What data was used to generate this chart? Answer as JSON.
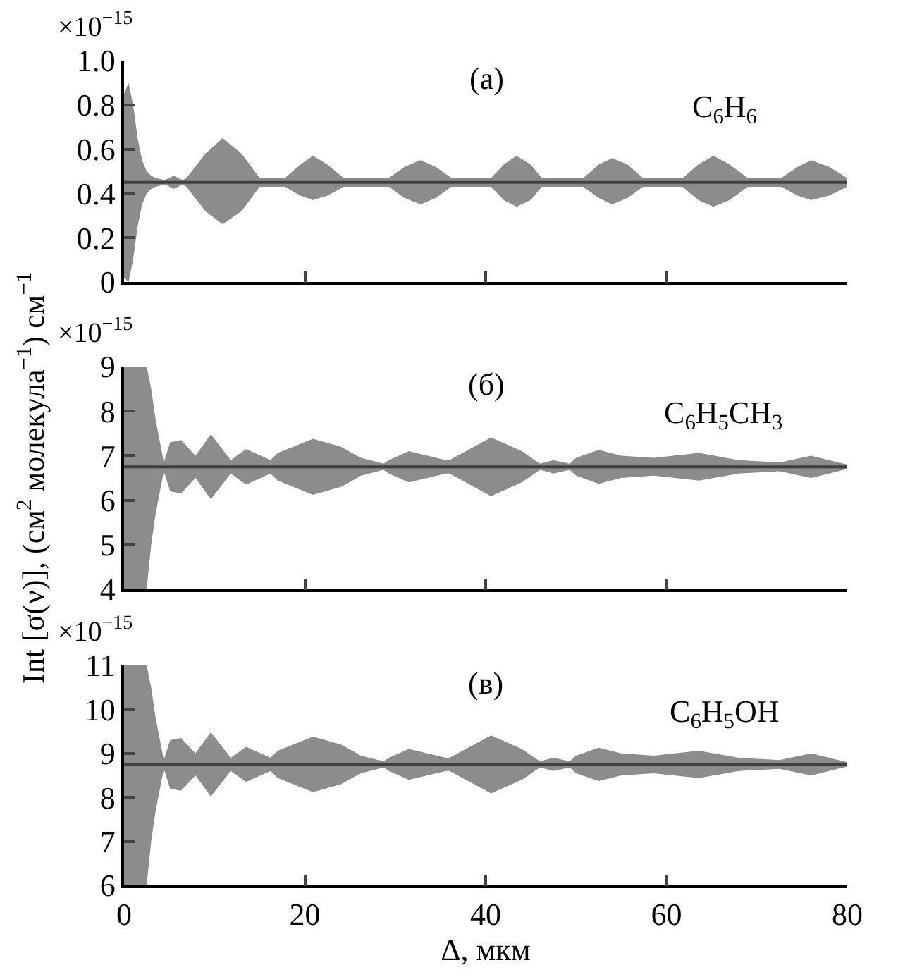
{
  "chart_data": [
    {
      "type": "line",
      "x": [
        0,
        0.5,
        1,
        1.5,
        2,
        2.5,
        3,
        3.5,
        4.5,
        5.5,
        6.5,
        6.9,
        9,
        10.9,
        13,
        15,
        17.8,
        19.5,
        20.9,
        22.5,
        24.3,
        29.3,
        31,
        32.8,
        34.5,
        36.2,
        40.6,
        42,
        43.4,
        45,
        46.2,
        50.8,
        52.5,
        54,
        55.7,
        57.4,
        61.8,
        63.5,
        65.2,
        67,
        69,
        72.7,
        74.5,
        76,
        78,
        80
      ],
      "series": [
        {
          "color": "#404040",
          "values": [
            0.45,
            0.45,
            0.45,
            0.45,
            0.45,
            0.45,
            0.45,
            0.45,
            0.45,
            0.45,
            0.45,
            0.45,
            0.45,
            0.45,
            0.45,
            0.45,
            0.45,
            0.45,
            0.45,
            0.45,
            0.45,
            0.45,
            0.45,
            0.45,
            0.45,
            0.45,
            0.45,
            0.45,
            0.45,
            0.45,
            0.45,
            0.45,
            0.45,
            0.45,
            0.45,
            0.45,
            0.45,
            0.45,
            0.45,
            0.45,
            0.45,
            0.45,
            0.45,
            0.45,
            0.45,
            0.45
          ],
          "upper": [
            0.85,
            0.9,
            0.8,
            0.65,
            0.55,
            0.5,
            0.48,
            0.47,
            0.46,
            0.48,
            0.46,
            0.47,
            0.58,
            0.65,
            0.58,
            0.47,
            0.47,
            0.53,
            0.57,
            0.53,
            0.47,
            0.47,
            0.52,
            0.55,
            0.52,
            0.47,
            0.47,
            0.53,
            0.57,
            0.53,
            0.47,
            0.47,
            0.53,
            0.56,
            0.53,
            0.47,
            0.47,
            0.53,
            0.57,
            0.53,
            0.47,
            0.47,
            0.52,
            0.55,
            0.52,
            0.47
          ],
          "lower": [
            0.02,
            0,
            0.1,
            0.25,
            0.35,
            0.4,
            0.42,
            0.43,
            0.44,
            0.42,
            0.44,
            0.43,
            0.32,
            0.26,
            0.32,
            0.43,
            0.43,
            0.39,
            0.37,
            0.39,
            0.43,
            0.43,
            0.38,
            0.35,
            0.38,
            0.43,
            0.43,
            0.37,
            0.34,
            0.37,
            0.43,
            0.43,
            0.38,
            0.35,
            0.38,
            0.43,
            0.43,
            0.37,
            0.34,
            0.37,
            0.43,
            0.43,
            0.39,
            0.37,
            0.39,
            0.43
          ]
        }
      ],
      "xlim": [
        0,
        80
      ],
      "xticks": [
        0,
        20,
        40,
        60,
        80
      ],
      "ylim": [
        0,
        1.0
      ],
      "yticks": [
        0,
        0.2,
        0.4,
        0.6,
        0.8,
        {
          "value": 1.0,
          "label": "1.0"
        }
      ],
      "tick_labels": "y",
      "annotations": [
        "×10$^{−15}$",
        "(а)",
        "C$_{6}$H$_{6}$"
      ]
    },
    {
      "type": "line",
      "x": [
        0,
        0.5,
        1,
        1.5,
        2,
        2.5,
        3,
        3.5,
        4.4,
        5.1,
        6.3,
        7.9,
        9.6,
        11.8,
        13.5,
        16.2,
        17,
        20.9,
        24,
        26.2,
        28.7,
        29.3,
        31.5,
        35.6,
        36,
        40.6,
        44,
        46,
        47.5,
        49.3,
        50,
        52.5,
        55,
        58.6,
        63.6,
        68,
        72.5,
        76,
        78,
        80
      ],
      "series": [
        {
          "color": "#404040",
          "values": [
            6.75,
            6.75,
            6.75,
            6.75,
            6.75,
            6.75,
            6.75,
            6.75,
            6.75,
            6.75,
            6.75,
            6.75,
            6.75,
            6.75,
            6.75,
            6.75,
            6.75,
            6.75,
            6.75,
            6.75,
            6.75,
            6.75,
            6.75,
            6.75,
            6.75,
            6.75,
            6.75,
            6.75,
            6.75,
            6.75,
            6.75,
            6.75,
            6.75,
            6.75,
            6.75,
            6.75,
            6.75,
            6.75,
            6.75,
            6.75
          ],
          "upper": [
            9,
            9,
            9,
            9,
            9,
            9,
            8.5,
            7.8,
            6.85,
            7.3,
            7.35,
            7.0,
            7.48,
            6.9,
            7.15,
            6.9,
            7.06,
            7.38,
            7.2,
            6.95,
            6.82,
            6.9,
            7.1,
            6.9,
            6.9,
            7.41,
            7.1,
            6.82,
            6.9,
            6.82,
            6.95,
            7.13,
            7.0,
            6.95,
            7.06,
            6.9,
            6.85,
            7.0,
            6.9,
            6.8
          ],
          "lower": [
            4,
            4,
            4,
            4,
            4,
            4,
            5,
            5.7,
            6.65,
            6.2,
            6.15,
            6.5,
            6.02,
            6.6,
            6.35,
            6.6,
            6.44,
            6.12,
            6.3,
            6.55,
            6.68,
            6.6,
            6.4,
            6.6,
            6.6,
            6.09,
            6.4,
            6.68,
            6.6,
            6.68,
            6.55,
            6.37,
            6.5,
            6.55,
            6.44,
            6.6,
            6.65,
            6.5,
            6.6,
            6.7
          ]
        }
      ],
      "xlim": [
        0,
        80
      ],
      "xticks": [
        0,
        20,
        40,
        60,
        80
      ],
      "ylim": [
        4,
        9
      ],
      "yticks": [
        4,
        5,
        6,
        7,
        8,
        9
      ],
      "tick_labels": "y",
      "ylabel": "Int [σ(ν)], (см$^{2}$ молекула$^{−1}$) см$^{−1}$",
      "annotations": [
        "×10$^{−15}$",
        "(б)",
        "C$_{6}$H$_{5}$CH$_{3}$"
      ]
    },
    {
      "type": "line",
      "x": [
        0,
        0.5,
        1,
        1.5,
        2,
        2.5,
        3,
        3.5,
        4.4,
        5.1,
        6.3,
        7.9,
        9.6,
        11.8,
        13.5,
        16.2,
        17,
        20.9,
        24,
        26.2,
        28.7,
        29.3,
        31.5,
        35.6,
        36,
        40.6,
        44,
        46,
        47.5,
        49.3,
        50,
        52.5,
        55,
        58.6,
        63.6,
        68,
        72.5,
        76,
        78,
        80
      ],
      "series": [
        {
          "color": "#404040",
          "values": [
            8.75,
            8.75,
            8.75,
            8.75,
            8.75,
            8.75,
            8.75,
            8.75,
            8.75,
            8.75,
            8.75,
            8.75,
            8.75,
            8.75,
            8.75,
            8.75,
            8.75,
            8.75,
            8.75,
            8.75,
            8.75,
            8.75,
            8.75,
            8.75,
            8.75,
            8.75,
            8.75,
            8.75,
            8.75,
            8.75,
            8.75,
            8.75,
            8.75,
            8.75,
            8.75,
            8.75,
            8.75,
            8.75,
            8.75,
            8.75
          ],
          "upper": [
            11,
            11,
            11,
            11,
            11,
            11,
            10.5,
            9.8,
            8.85,
            9.3,
            9.35,
            9.0,
            9.48,
            8.9,
            9.15,
            8.9,
            9.06,
            9.38,
            9.2,
            8.95,
            8.82,
            8.9,
            9.1,
            8.9,
            8.9,
            9.41,
            9.1,
            8.82,
            8.9,
            8.82,
            8.95,
            9.13,
            9.0,
            8.95,
            9.06,
            8.9,
            8.85,
            9.0,
            8.9,
            8.8
          ],
          "lower": [
            6,
            6,
            6,
            6,
            6,
            6,
            7,
            7.7,
            8.65,
            8.2,
            8.15,
            8.5,
            8.02,
            8.6,
            8.35,
            8.6,
            8.44,
            8.12,
            8.3,
            8.55,
            8.68,
            8.6,
            8.4,
            8.6,
            8.6,
            8.09,
            8.4,
            8.68,
            8.6,
            8.68,
            8.55,
            8.37,
            8.5,
            8.55,
            8.44,
            8.6,
            8.65,
            8.5,
            8.6,
            8.7
          ]
        }
      ],
      "xlim": [
        0,
        80
      ],
      "xticks": [
        0,
        20,
        40,
        60,
        80
      ],
      "ylim": [
        6,
        11
      ],
      "yticks": [
        6,
        7,
        8,
        9,
        10,
        11
      ],
      "xlabel": "Δ, мкм",
      "annotations": [
        "×10$^{−15}$",
        "(в)",
        "C$_{6}$H$_{5}$OH"
      ]
    }
  ]
}
